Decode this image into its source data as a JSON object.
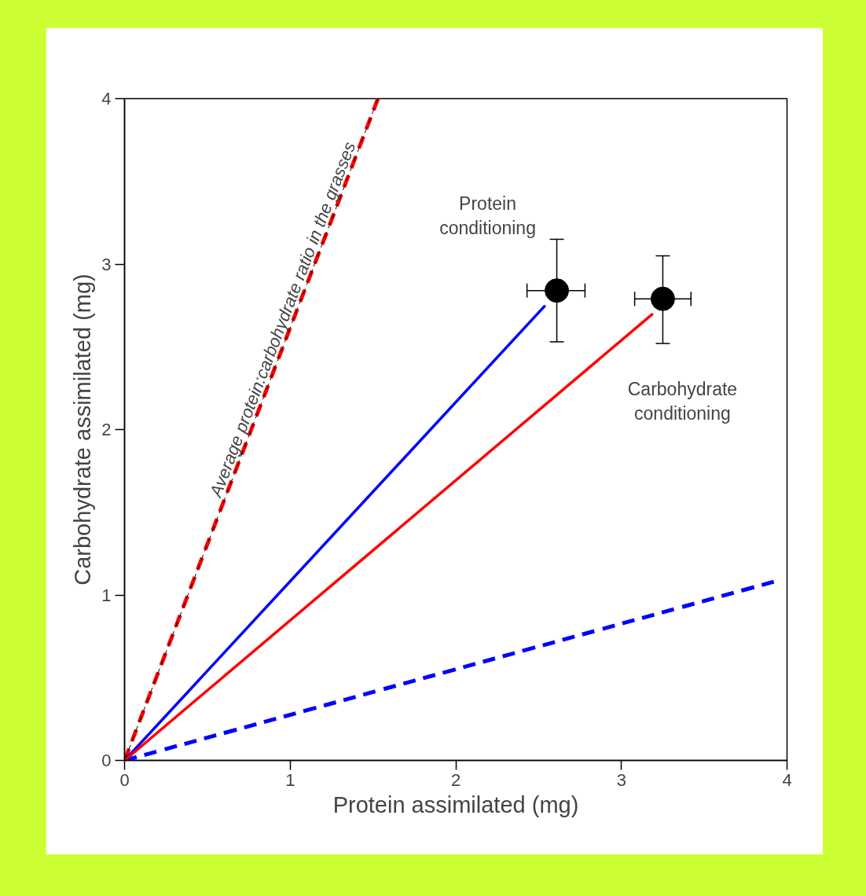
{
  "chart_data": {
    "type": "line",
    "xlabel": "Protein assimilated (mg)",
    "ylabel": "Carbohydrate assimilated (mg)",
    "xlim": [
      0,
      4
    ],
    "ylim": [
      0,
      4
    ],
    "xticks": [
      0,
      1,
      2,
      3,
      4
    ],
    "yticks": [
      0,
      1,
      2,
      3,
      4
    ],
    "grid": false,
    "series": [
      {
        "color": "#ff0000",
        "line_style": "dashed",
        "x": [
          0,
          1.53
        ],
        "values": [
          0,
          4
        ]
      },
      {
        "color": "#000000",
        "line_style": "dashed",
        "x": [
          0,
          1.53
        ],
        "values": [
          0,
          4
        ]
      },
      {
        "color": "#0000ff",
        "line_style": "dashed",
        "x": [
          0,
          3.92
        ],
        "values": [
          0,
          1.08
        ]
      },
      {
        "color": "#0000ff",
        "line_style": "solid",
        "x": [
          0,
          2.54
        ],
        "values": [
          0,
          2.75
        ]
      },
      {
        "color": "#ff0000",
        "line_style": "solid",
        "x": [
          0,
          3.19
        ],
        "values": [
          0,
          2.7
        ]
      },
      {
        "type": "scatter",
        "color": "#000000",
        "marker": "circle",
        "x": [
          2.61,
          3.25
        ],
        "values": [
          2.84,
          2.79
        ],
        "errors": [
          [
            2.53,
            3.15
          ],
          [
            2.52,
            3.05
          ]
        ],
        "xerrors": [
          [
            2.43,
            2.78
          ],
          [
            3.08,
            3.42
          ]
        ]
      }
    ],
    "annotations": [
      {
        "text": "Average protein:carbohydrate ratio in the grasses",
        "x": 1.01,
        "y": 2.645
      },
      "Protein conditioning",
      "Carbohydrate conditioning"
    ]
  }
}
